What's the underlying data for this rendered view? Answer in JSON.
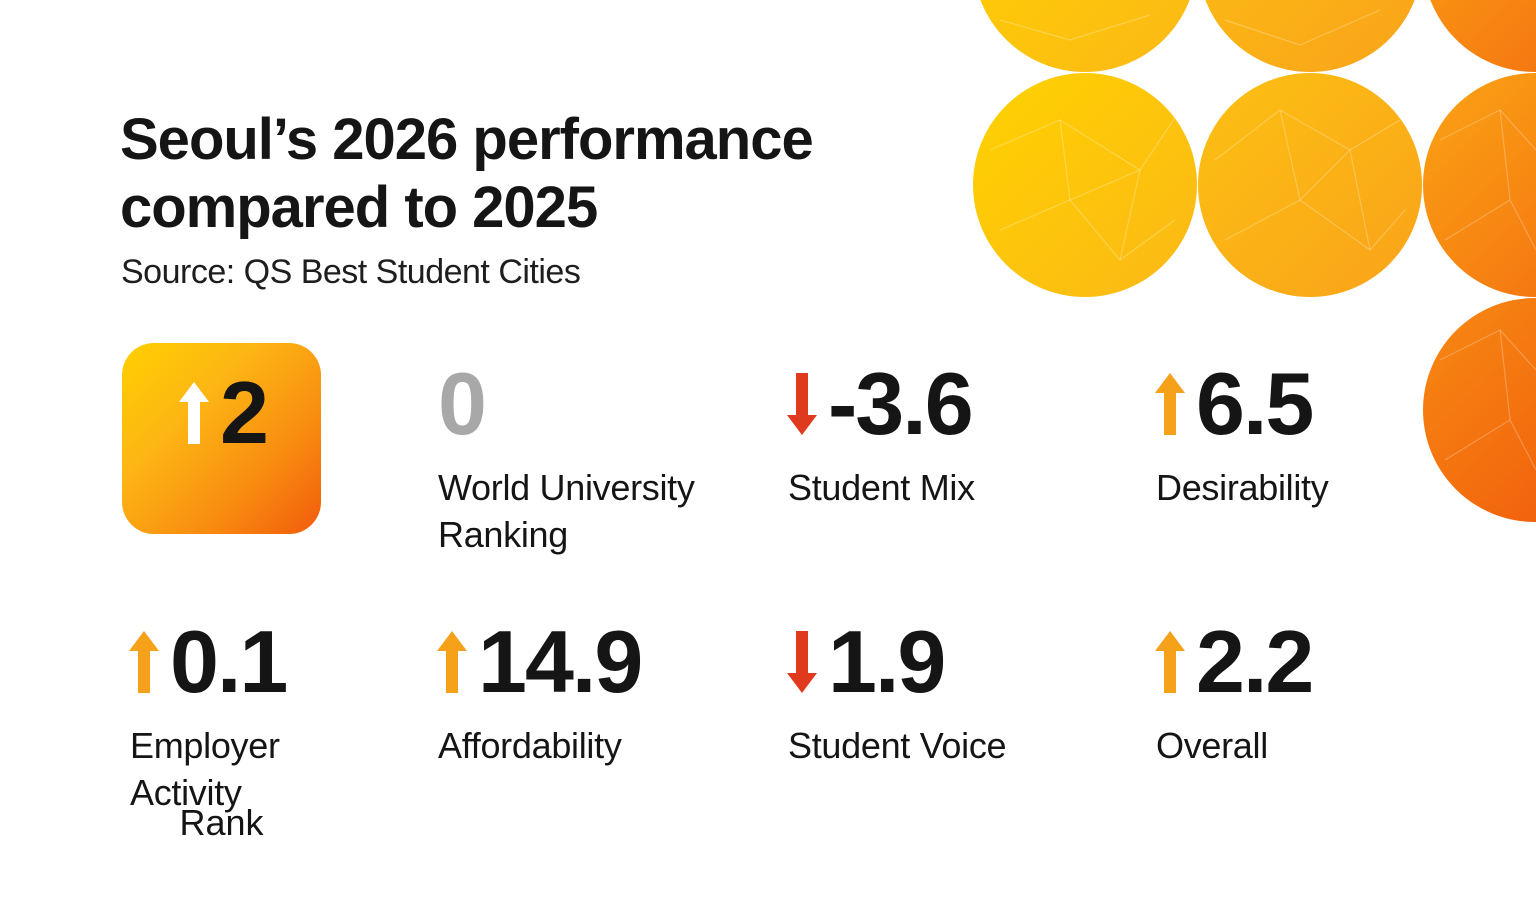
{
  "heading": {
    "line1": "Seoul’s 2026 performance",
    "line2": "compared to 2025",
    "source": "Source: QS Best Student Cities"
  },
  "colors": {
    "up_arrow": "#f5a21a",
    "down_arrow": "#e03a1e",
    "neutral_value": "#a8a8a8",
    "text": "#151515",
    "accent_yellow": "#ffd000",
    "accent_orange": "#f25a0c"
  },
  "rank": {
    "value": "2",
    "label": "Rank",
    "direction": "up",
    "icon": "arrow-up-icon"
  },
  "metrics": [
    {
      "value": "0",
      "label_lines": [
        "World University",
        "Ranking"
      ],
      "direction": "none"
    },
    {
      "value": "-3.6",
      "label_lines": [
        "Student Mix"
      ],
      "direction": "down",
      "icon": "arrow-down-icon"
    },
    {
      "value": "6.5",
      "label_lines": [
        "Desirability"
      ],
      "direction": "up",
      "icon": "arrow-up-icon"
    },
    {
      "value": "0.1",
      "label_lines": [
        "Employer",
        "Activity"
      ],
      "direction": "up",
      "icon": "arrow-up-icon"
    },
    {
      "value": "14.9",
      "label_lines": [
        "Affordability"
      ],
      "direction": "up",
      "icon": "arrow-up-icon"
    },
    {
      "value": "1.9",
      "label_lines": [
        "Student Voice"
      ],
      "direction": "down",
      "icon": "arrow-down-icon"
    },
    {
      "value": "2.2",
      "label_lines": [
        "Overall"
      ],
      "direction": "up",
      "icon": "arrow-up-icon"
    }
  ]
}
